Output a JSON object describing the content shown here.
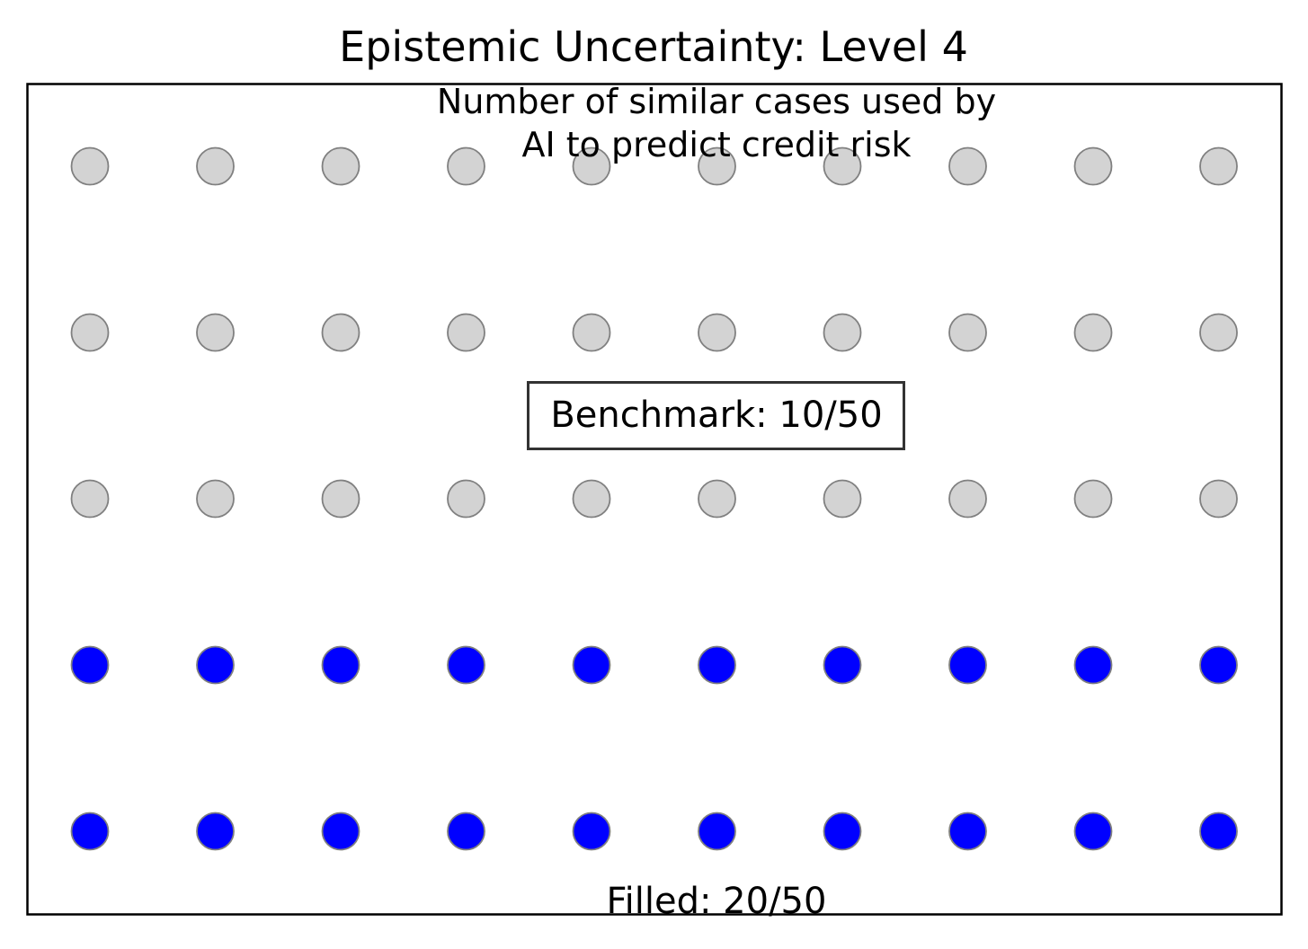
{
  "chart_data": {
    "type": "scatter",
    "title": "Epistemic Uncertainty: Level 4",
    "subtitle": [
      "Number of similar cases used by",
      "AI to predict credit risk"
    ],
    "benchmark_label": "Benchmark: 10/50",
    "filled_label": "Filled: 20/50",
    "grid": {
      "rows": 5,
      "cols": 10
    },
    "total": 50,
    "filled": 20,
    "benchmark": 10,
    "fill_order": "bottom-up, left-to-right",
    "colors": {
      "filled": "#0000ff",
      "empty": "#d3d3d3",
      "marker_edge": "#808080"
    },
    "axes_visible": false,
    "grid_lines": false
  }
}
